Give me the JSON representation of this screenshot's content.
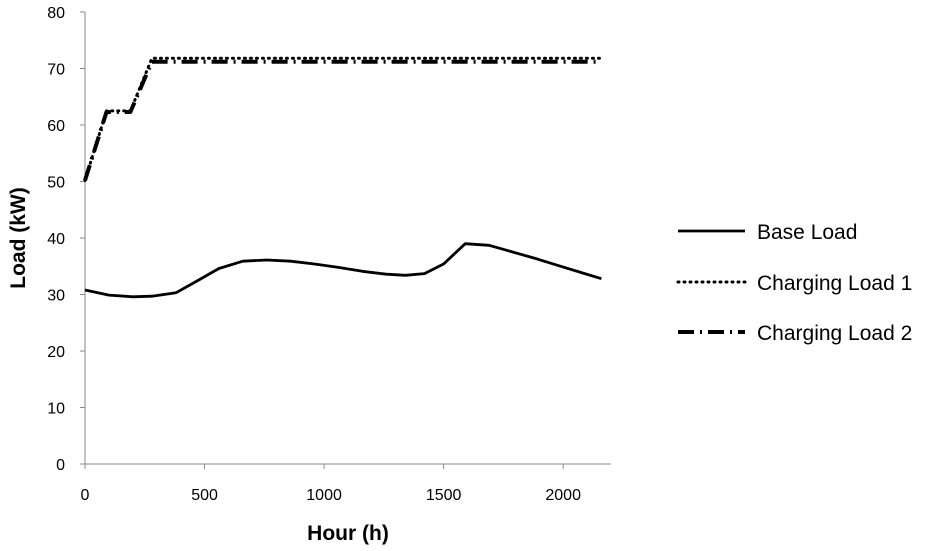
{
  "chart_data": {
    "type": "line",
    "xlabel": "Hour (h)",
    "ylabel": "Load (kW)",
    "xlim": [
      0,
      2200
    ],
    "ylim": [
      0,
      80
    ],
    "xticks": [
      0,
      500,
      1000,
      1500,
      2000
    ],
    "yticks": [
      0,
      10,
      20,
      30,
      40,
      50,
      60,
      70,
      80
    ],
    "grid": false,
    "legend_position": "right",
    "series": [
      {
        "name": "Base Load",
        "style": "solid",
        "x": [
          0,
          100,
          200,
          280,
          380,
          460,
          560,
          660,
          760,
          860,
          960,
          1060,
          1160,
          1260,
          1340,
          1420,
          1500,
          1590,
          1690,
          1790,
          1890,
          1990,
          2090,
          2160
        ],
        "values": [
          30.8,
          29.9,
          29.6,
          29.7,
          30.3,
          32.2,
          34.6,
          35.9,
          36.1,
          35.9,
          35.4,
          34.8,
          34.1,
          33.6,
          33.4,
          33.7,
          35.4,
          39.0,
          38.7,
          37.5,
          36.3,
          35.0,
          33.7,
          32.8
        ]
      },
      {
        "name": "Charging Load 1",
        "style": "dotted",
        "x": [
          0,
          90,
          190,
          280,
          2160
        ],
        "values": [
          50.2,
          62.5,
          62.5,
          71.8,
          71.8
        ]
      },
      {
        "name": "Charging Load 2",
        "style": "dash-dot",
        "x": [
          0,
          90,
          190,
          280,
          2160
        ],
        "values": [
          50.2,
          62.3,
          62.3,
          71.2,
          71.2
        ]
      }
    ]
  }
}
